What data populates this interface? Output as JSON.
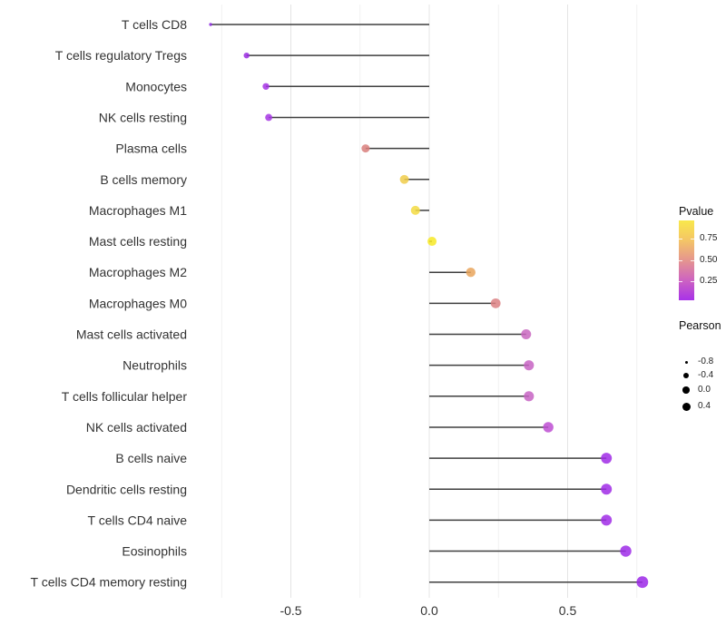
{
  "chart_data": {
    "type": "lollipop",
    "orientation": "horizontal",
    "title": "",
    "xlabel": "",
    "ylabel": "",
    "xlim": [
      -0.9,
      0.88
    ],
    "x_major_ticks": [
      -0.5,
      0.0,
      0.5
    ],
    "x_tick_labels": [
      "-0.5",
      "0.0",
      "0.5"
    ],
    "x_minor_ticks": [
      -0.75,
      -0.25,
      0.25,
      0.75
    ],
    "baseline": 0.0,
    "grid": "major+minor",
    "size_encoding": "Pearson",
    "color_encoding": "Pvalue",
    "points": [
      {
        "label": "T cells CD8",
        "pearson": -0.79,
        "color": "#8d2be0",
        "r": 1.7
      },
      {
        "label": "T cells regulatory  Tregs",
        "pearson": -0.66,
        "color": "#9a2ce2",
        "r": 3.2
      },
      {
        "label": "Monocytes",
        "pearson": -0.59,
        "color": "#a433e4",
        "r": 3.7
      },
      {
        "label": "NK cells resting",
        "pearson": -0.58,
        "color": "#a636e4",
        "r": 3.9
      },
      {
        "label": "Plasma cells",
        "pearson": -0.23,
        "color": "#d97f7c",
        "r": 4.5
      },
      {
        "label": "B cells memory",
        "pearson": -0.09,
        "color": "#f0cc4a",
        "r": 4.9
      },
      {
        "label": "Macrophages M1",
        "pearson": -0.05,
        "color": "#f3da42",
        "r": 5.0
      },
      {
        "label": "Mast cells resting",
        "pearson": 0.01,
        "color": "#f7e926",
        "r": 5.0
      },
      {
        "label": "Macrophages M2",
        "pearson": 0.15,
        "color": "#e9a55c",
        "r": 5.2
      },
      {
        "label": "Macrophages M0",
        "pearson": 0.24,
        "color": "#dc8184",
        "r": 5.4
      },
      {
        "label": "Mast cells activated",
        "pearson": 0.35,
        "color": "#c966c0",
        "r": 5.5
      },
      {
        "label": "Neutrophils",
        "pearson": 0.36,
        "color": "#c763c3",
        "r": 5.55
      },
      {
        "label": "T cells follicular helper",
        "pearson": 0.36,
        "color": "#c763c3",
        "r": 5.55
      },
      {
        "label": "NK cells activated",
        "pearson": 0.43,
        "color": "#bd4ed2",
        "r": 5.7
      },
      {
        "label": "B cells naive",
        "pearson": 0.64,
        "color": "#a02ce6",
        "r": 6.0
      },
      {
        "label": "Dendritic cells resting",
        "pearson": 0.64,
        "color": "#a02ce6",
        "r": 6.0
      },
      {
        "label": "T cells CD4 naive",
        "pearson": 0.64,
        "color": "#a02ce6",
        "r": 6.0
      },
      {
        "label": "Eosinophils",
        "pearson": 0.71,
        "color": "#9e2ce8",
        "r": 6.2
      },
      {
        "label": "T cells CD4 memory resting",
        "pearson": 0.77,
        "color": "#9c28e8",
        "r": 6.4
      }
    ],
    "style": {
      "stem_color": "#3f3f3f",
      "axis_text_color": "#333333",
      "grid_major_color": "#e4e4e4",
      "grid_minor_color": "#f1f1f1",
      "dot_opacity": 0.85
    }
  },
  "legends": {
    "pvalue": {
      "title": "Pvalue",
      "ticks": [
        "0.75",
        "0.50",
        "0.25"
      ],
      "tick_offsets": [
        20,
        44,
        67
      ],
      "gradient": [
        "#f9e84b",
        "#f4c566",
        "#e5958f",
        "#cd63c1",
        "#a832e8"
      ]
    },
    "pearson": {
      "title": "Pearson",
      "dot_color": "#000000",
      "items": [
        {
          "label": "-0.8",
          "r": 1.5,
          "y": 27
        },
        {
          "label": "-0.4",
          "r": 3.0,
          "y": 42
        },
        {
          "label": "0.0",
          "r": 3.8,
          "y": 58
        },
        {
          "label": "0.4",
          "r": 4.5,
          "y": 76
        }
      ]
    }
  }
}
